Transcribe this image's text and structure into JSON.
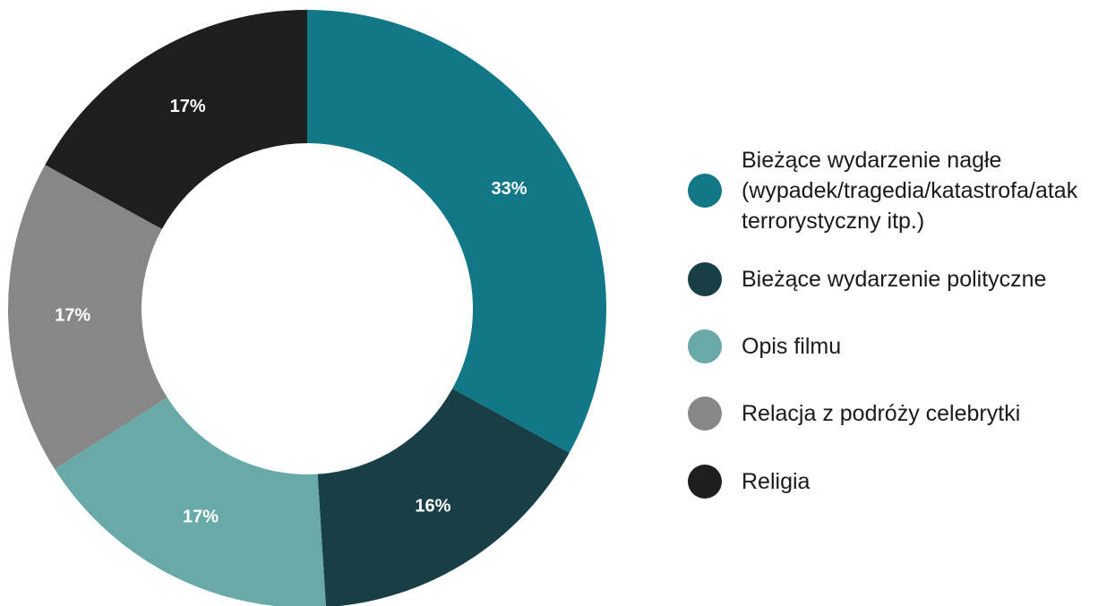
{
  "chart_data": {
    "type": "donut",
    "categories": [
      "Bieżące wydarzenie nagłe (wypadek/tragedia/katastrofa/atak terrorystyczny itp.)",
      "Bieżące wydarzenie polityczne",
      "Opis filmu",
      "Relacja z podróży celebrytki",
      "Religia"
    ],
    "values": [
      33,
      16,
      17,
      17,
      17
    ],
    "value_labels": [
      "33%",
      "16%",
      "17%",
      "17%",
      "17%"
    ],
    "colors": [
      "#127887",
      "#173f45",
      "#69aaa9",
      "#878787",
      "#1e1e1e"
    ],
    "legend": "right"
  }
}
